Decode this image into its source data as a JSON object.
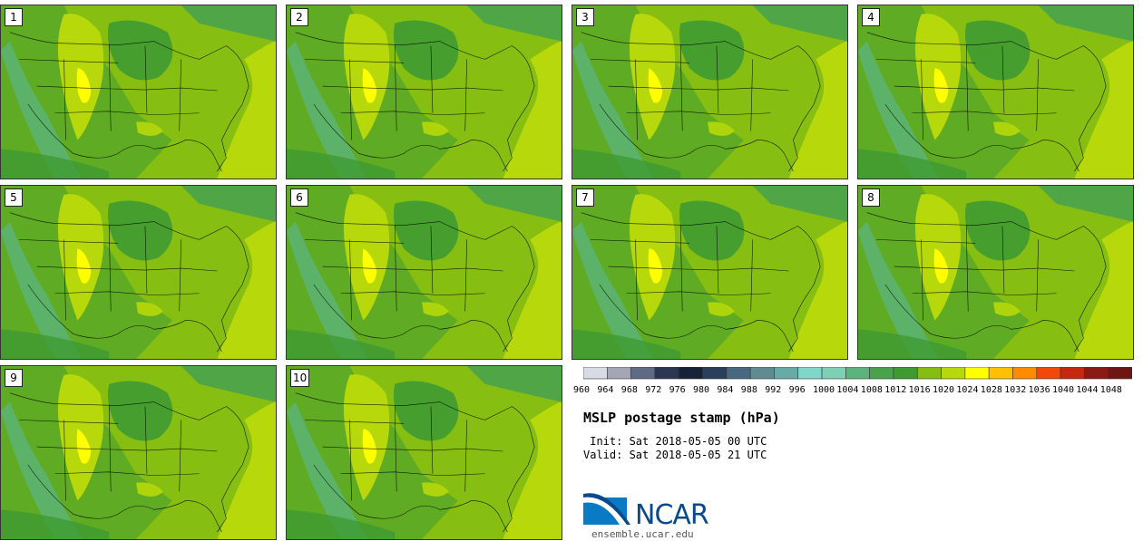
{
  "panels": [
    {
      "label": "1"
    },
    {
      "label": "2"
    },
    {
      "label": "3"
    },
    {
      "label": "4"
    },
    {
      "label": "5"
    },
    {
      "label": "6"
    },
    {
      "label": "7"
    },
    {
      "label": "8"
    },
    {
      "label": "9"
    },
    {
      "label": "10"
    }
  ],
  "colorbar": {
    "labels": [
      "960",
      "964",
      "968",
      "972",
      "976",
      "980",
      "984",
      "988",
      "992",
      "996",
      "1000",
      "1004",
      "1008",
      "1012",
      "1016",
      "1020",
      "1024",
      "1028",
      "1032",
      "1036",
      "1040",
      "1044",
      "1048"
    ],
    "colors": [
      "#d9dbe4",
      "#a3a6b4",
      "#5f6a85",
      "#2b3752",
      "#162238",
      "#2a3f5c",
      "#47697f",
      "#5f8b91",
      "#6aaaa6",
      "#80d6c8",
      "#7dd0b4",
      "#5cb47c",
      "#4aa24c",
      "#3f9a32",
      "#86bd12",
      "#b7d80a",
      "#ffff00",
      "#ffc000",
      "#ff8c00",
      "#f04a0a",
      "#c42810",
      "#8a1a14",
      "#6e1712"
    ]
  },
  "title": "MSLP postage stamp (hPa)",
  "init_text": " Init: Sat 2018-05-05 00 UTC",
  "valid_text": "Valid: Sat 2018-05-05 21 UTC",
  "logo": {
    "name": "NCAR",
    "url": "ensemble.ucar.edu"
  },
  "field_colors": {
    "base": "#86be12",
    "low": "#3f9a32",
    "lower": "#4aa24c",
    "coastal": "#5cb47c",
    "high": "#b7d80a",
    "highest": "#ffff00"
  }
}
